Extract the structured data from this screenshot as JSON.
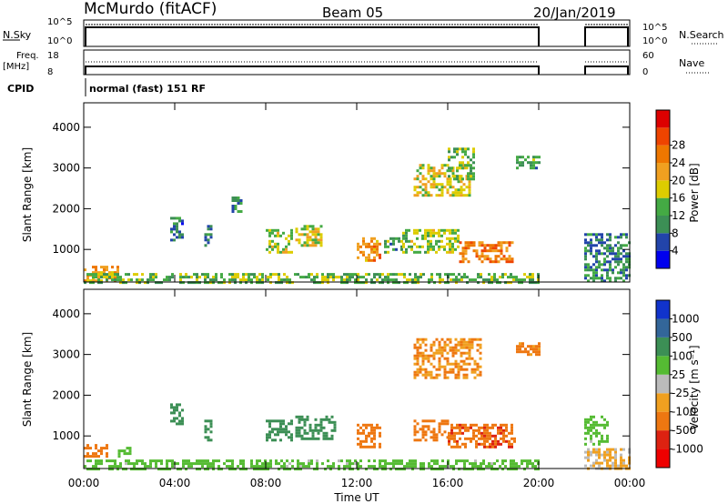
{
  "header": {
    "station": "McMurdo (fitACF)",
    "beam": "Beam 05",
    "date": "20/Jan/2019"
  },
  "strip_panels": {
    "nsky_label": "N.Sky",
    "nsky_ticks": [
      "10^5",
      "10^0"
    ],
    "nsky_right_ticks": [
      "10^5",
      "10^0"
    ],
    "nsearch_label": "N.Search",
    "freq_label": "Freq.",
    "freq_unit": "[MHz]",
    "freq_ticks": [
      "18",
      "8"
    ],
    "nave_ticks": [
      "60",
      "0"
    ],
    "nave_label": "Nave",
    "cpid_label": "CPID",
    "cpid_value": "normal (fast) 151 RF"
  },
  "axes": {
    "ylabel": "Slant Range [km]",
    "xlabel": "Time UT",
    "xticks": [
      "00:00",
      "04:00",
      "08:00",
      "12:00",
      "16:00",
      "20:00",
      "00:00"
    ],
    "yticks": [
      "1000",
      "2000",
      "3000",
      "4000"
    ]
  },
  "colorbars": {
    "power": {
      "label": "Power [dB]",
      "ticks": [
        "4",
        "8",
        "12",
        "16",
        "20",
        "24",
        "28"
      ],
      "colors": [
        "#0000ee",
        "#2244aa",
        "#3c8f55",
        "#44aa44",
        "#ddcc00",
        "#f0a020",
        "#ee7700",
        "#ee4400",
        "#dd0000"
      ]
    },
    "velocity": {
      "label": "Velocity [m s⁻¹]",
      "ticks": [
        "1000",
        "500",
        "100",
        "25",
        "-25",
        "-100",
        "-500",
        "-1000"
      ],
      "colors": [
        "#1133cc",
        "#336699",
        "#3c8f55",
        "#55bb33",
        "#bbbbbb",
        "#f0a020",
        "#ee7711",
        "#dd2211",
        "#ee0000"
      ]
    }
  },
  "chart_data": [
    {
      "type": "heatmap",
      "name": "Power",
      "x_unit": "hours UT",
      "xlim": [
        0,
        24
      ],
      "ylim": [
        200,
        4600
      ],
      "data_gap_hours": [
        20,
        22
      ],
      "regions": [
        {
          "t": [
            0.0,
            1.5
          ],
          "r": [
            200,
            600
          ],
          "value": 22
        },
        {
          "t": [
            0.0,
            20.0
          ],
          "r": [
            200,
            420
          ],
          "value": 14
        },
        {
          "t": [
            3.8,
            4.3
          ],
          "r": [
            1200,
            1800
          ],
          "value": 8
        },
        {
          "t": [
            5.3,
            5.6
          ],
          "r": [
            1100,
            1600
          ],
          "value": 9
        },
        {
          "t": [
            6.5,
            6.9
          ],
          "r": [
            1900,
            2300
          ],
          "value": 9
        },
        {
          "t": [
            8.0,
            9.2
          ],
          "r": [
            900,
            1500
          ],
          "value": 16
        },
        {
          "t": [
            9.3,
            10.5
          ],
          "r": [
            1100,
            1600
          ],
          "value": 18
        },
        {
          "t": [
            12.0,
            13.0
          ],
          "r": [
            700,
            1300
          ],
          "value": 24
        },
        {
          "t": [
            13.2,
            14.0
          ],
          "r": [
            900,
            1300
          ],
          "value": 12
        },
        {
          "t": [
            14.0,
            16.5
          ],
          "r": [
            900,
            1500
          ],
          "value": 16
        },
        {
          "t": [
            16.5,
            18.8
          ],
          "r": [
            700,
            1200
          ],
          "value": 25
        },
        {
          "t": [
            14.5,
            17.0
          ],
          "r": [
            2300,
            3100
          ],
          "value": 18
        },
        {
          "t": [
            16.0,
            17.2
          ],
          "r": [
            2700,
            3500
          ],
          "value": 14
        },
        {
          "t": [
            19.0,
            20.0
          ],
          "r": [
            3000,
            3300
          ],
          "value": 12
        },
        {
          "t": [
            22.0,
            24.0
          ],
          "r": [
            200,
            1400
          ],
          "value": 10
        }
      ]
    },
    {
      "type": "heatmap",
      "name": "Velocity",
      "x_unit": "hours UT",
      "xlim": [
        0,
        24
      ],
      "ylim": [
        200,
        4600
      ],
      "data_gap_hours": [
        20,
        22
      ],
      "regions": [
        {
          "t": [
            0.0,
            20.0
          ],
          "r": [
            200,
            420
          ],
          "value": 60
        },
        {
          "t": [
            0.0,
            1.0
          ],
          "r": [
            500,
            800
          ],
          "value": -200
        },
        {
          "t": [
            1.5,
            2.0
          ],
          "r": [
            500,
            800
          ],
          "value": 60
        },
        {
          "t": [
            3.8,
            4.3
          ],
          "r": [
            1200,
            1800
          ],
          "value": 200
        },
        {
          "t": [
            5.3,
            5.6
          ],
          "r": [
            900,
            1400
          ],
          "value": 200
        },
        {
          "t": [
            8.0,
            9.2
          ],
          "r": [
            900,
            1400
          ],
          "value": 200
        },
        {
          "t": [
            9.3,
            11.0
          ],
          "r": [
            900,
            1500
          ],
          "value": 200
        },
        {
          "t": [
            12.0,
            13.0
          ],
          "r": [
            700,
            1300
          ],
          "value": -200
        },
        {
          "t": [
            14.5,
            16.0
          ],
          "r": [
            900,
            1400
          ],
          "value": -300
        },
        {
          "t": [
            16.0,
            19.0
          ],
          "r": [
            700,
            1300
          ],
          "value": -400
        },
        {
          "t": [
            14.5,
            17.5
          ],
          "r": [
            2400,
            3400
          ],
          "value": -100
        },
        {
          "t": [
            19.0,
            20.0
          ],
          "r": [
            3000,
            3300
          ],
          "value": -150
        },
        {
          "t": [
            22.0,
            23.0
          ],
          "r": [
            800,
            1500
          ],
          "value": 60
        },
        {
          "t": [
            22.0,
            24.0
          ],
          "r": [
            200,
            700
          ],
          "value": -25
        }
      ]
    }
  ]
}
